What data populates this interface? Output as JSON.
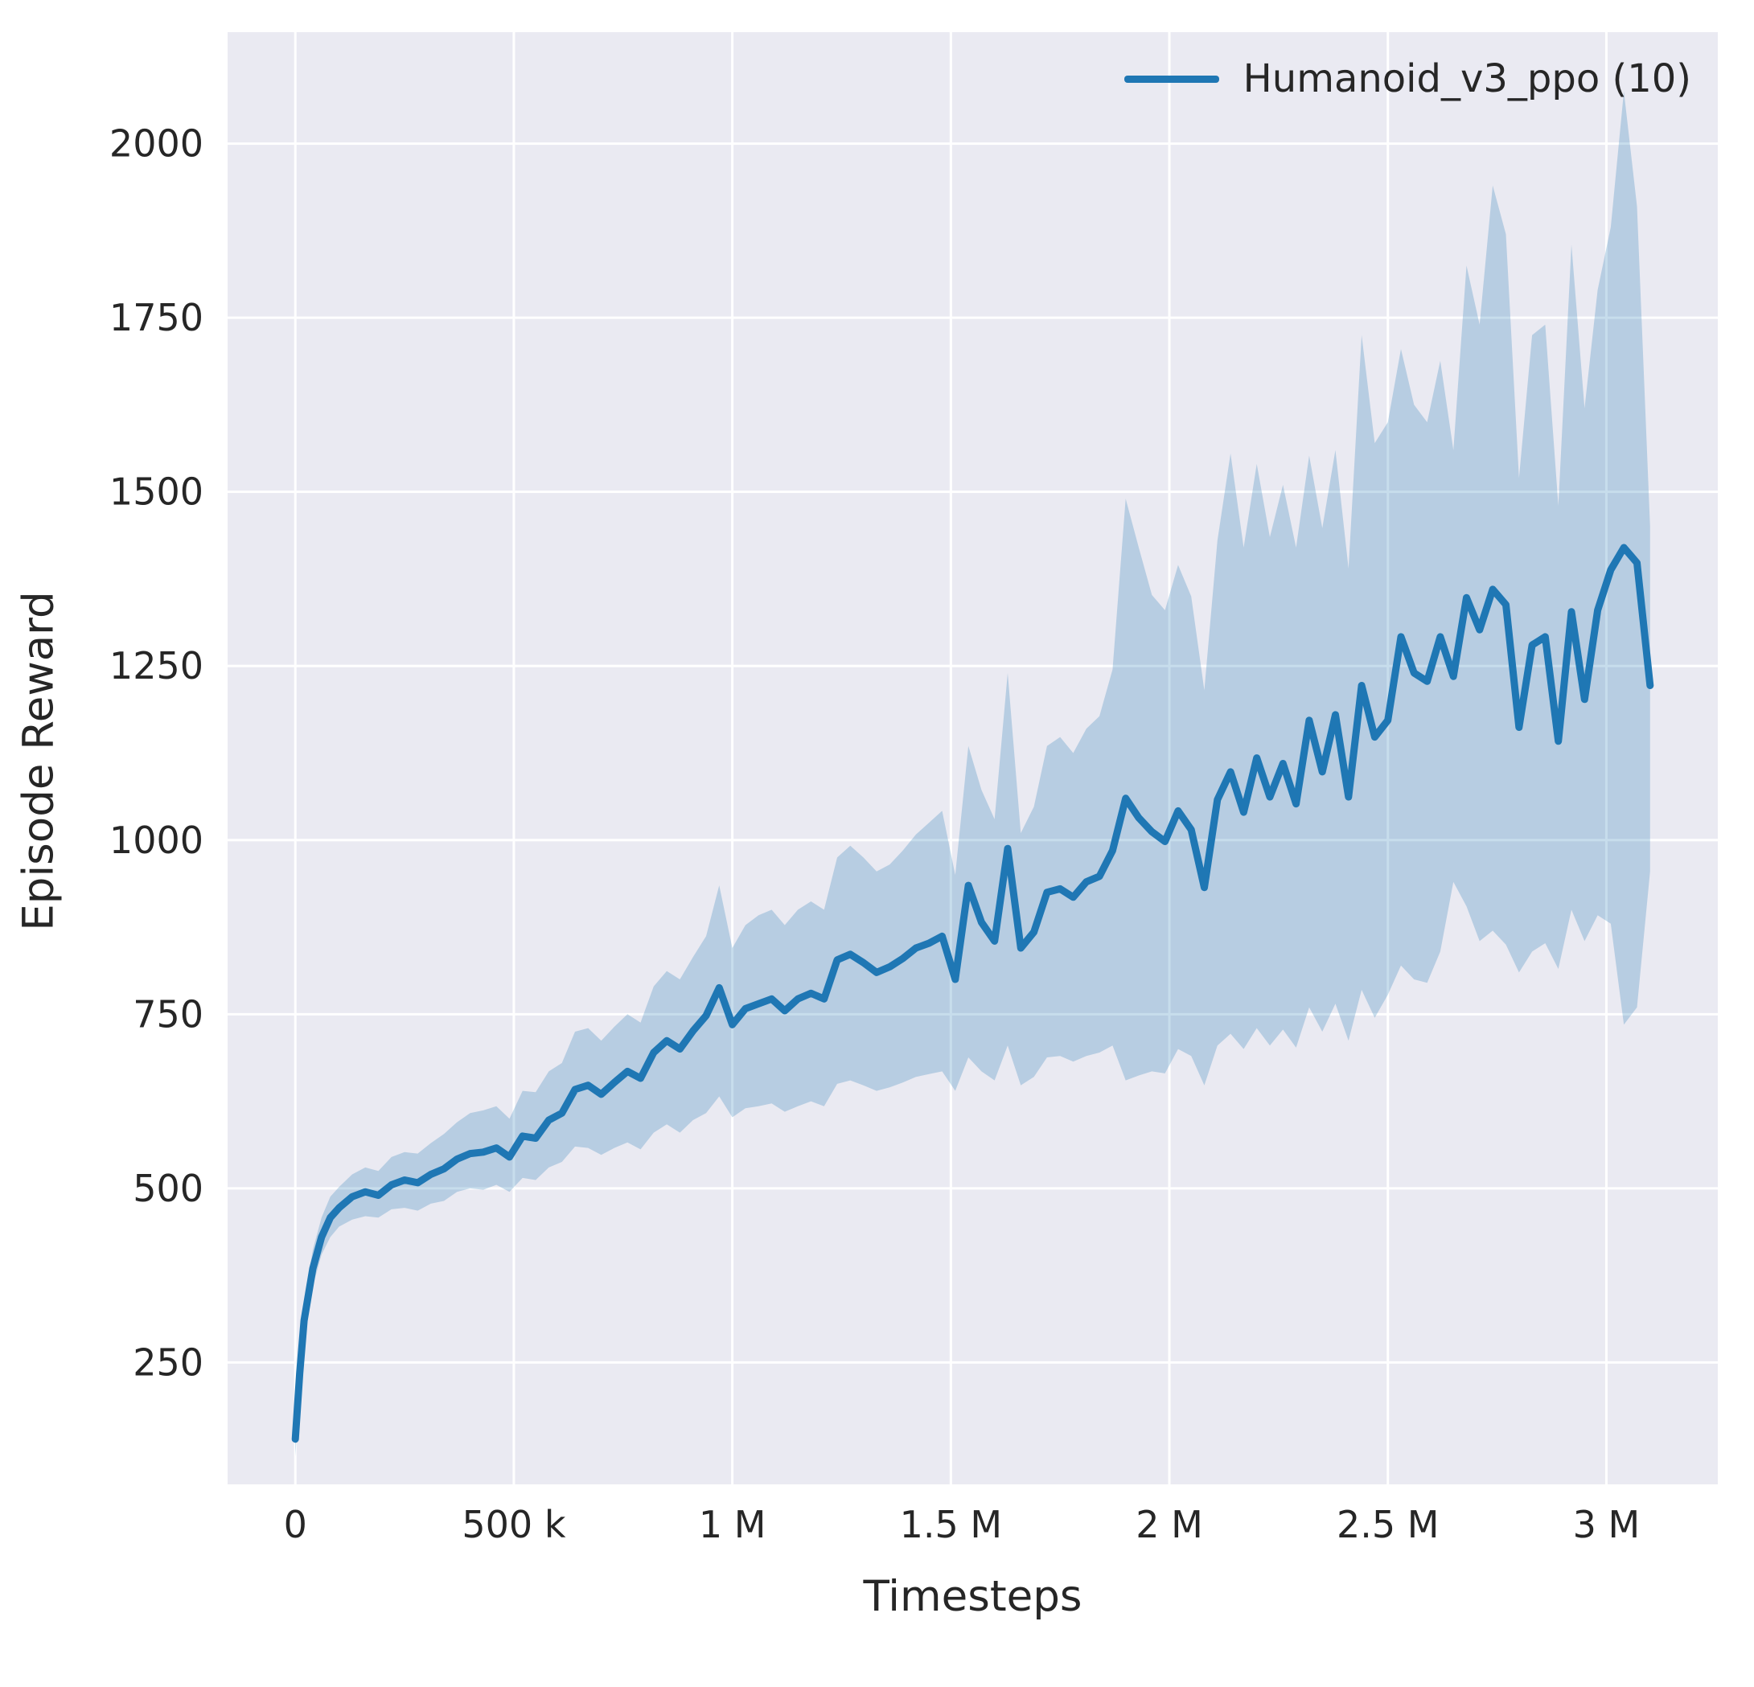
{
  "figure": {
    "background": "#ffffff"
  },
  "chart_data": {
    "type": "line",
    "title": "",
    "xlabel": "Timesteps",
    "ylabel": "Episode Reward",
    "xlim": [
      -155000,
      3255000
    ],
    "ylim": [
      75,
      2160
    ],
    "grid": true,
    "legend_position": "upper right",
    "colors": {
      "axes_bg": "#eaeaf2",
      "grid": "#ffffff",
      "text": "#262626",
      "line": "#1f77b4"
    },
    "xticks": {
      "values": [
        0,
        500000,
        1000000,
        1500000,
        2000000,
        2500000,
        3000000
      ],
      "labels": [
        "0",
        "500 k",
        "1 M",
        "1.5 M",
        "2 M",
        "2.5 M",
        "3 M"
      ]
    },
    "yticks": {
      "values": [
        250,
        500,
        750,
        1000,
        1250,
        1500,
        1750,
        2000
      ],
      "labels": [
        "250",
        "500",
        "750",
        "1000",
        "1250",
        "1500",
        "1750",
        "2000"
      ]
    },
    "point_format": [
      "timesteps",
      "band_low",
      "mean",
      "band_high"
    ],
    "series": [
      {
        "name": "Humanoid_v3_ppo (10)",
        "color": "#1f77b4",
        "band_opacity": 0.25,
        "points": [
          [
            0,
            115,
            140,
            165
          ],
          [
            10000,
            210,
            235,
            262
          ],
          [
            20000,
            285,
            310,
            338
          ],
          [
            40000,
            360,
            385,
            412
          ],
          [
            60000,
            405,
            430,
            458
          ],
          [
            80000,
            430,
            458,
            488
          ],
          [
            100000,
            445,
            472,
            502
          ],
          [
            130000,
            455,
            488,
            520
          ],
          [
            160000,
            460,
            495,
            530
          ],
          [
            190000,
            458,
            490,
            525
          ],
          [
            220000,
            470,
            505,
            545
          ],
          [
            250000,
            472,
            512,
            552
          ],
          [
            280000,
            468,
            508,
            550
          ],
          [
            310000,
            478,
            520,
            565
          ],
          [
            340000,
            482,
            528,
            578
          ],
          [
            370000,
            495,
            542,
            595
          ],
          [
            400000,
            500,
            550,
            608
          ],
          [
            430000,
            498,
            552,
            612
          ],
          [
            460000,
            505,
            558,
            618
          ],
          [
            490000,
            495,
            545,
            600
          ],
          [
            520000,
            515,
            575,
            640
          ],
          [
            550000,
            512,
            572,
            638
          ],
          [
            580000,
            530,
            598,
            668
          ],
          [
            610000,
            538,
            608,
            680
          ],
          [
            640000,
            560,
            642,
            725
          ],
          [
            670000,
            558,
            648,
            730
          ],
          [
            700000,
            548,
            635,
            712
          ],
          [
            730000,
            558,
            652,
            732
          ],
          [
            760000,
            566,
            668,
            750
          ],
          [
            790000,
            556,
            658,
            738
          ],
          [
            820000,
            580,
            695,
            790
          ],
          [
            850000,
            592,
            712,
            812
          ],
          [
            880000,
            580,
            700,
            800
          ],
          [
            910000,
            598,
            726,
            832
          ],
          [
            940000,
            608,
            748,
            862
          ],
          [
            970000,
            632,
            788,
            935
          ],
          [
            1000000,
            602,
            735,
            845
          ],
          [
            1030000,
            615,
            758,
            878
          ],
          [
            1060000,
            618,
            765,
            892
          ],
          [
            1090000,
            622,
            772,
            900
          ],
          [
            1120000,
            610,
            755,
            878
          ],
          [
            1150000,
            618,
            772,
            900
          ],
          [
            1180000,
            625,
            780,
            912
          ],
          [
            1210000,
            618,
            772,
            900
          ],
          [
            1240000,
            650,
            828,
            975
          ],
          [
            1270000,
            655,
            836,
            992
          ],
          [
            1300000,
            648,
            824,
            975
          ],
          [
            1330000,
            640,
            810,
            955
          ],
          [
            1360000,
            645,
            818,
            965
          ],
          [
            1390000,
            652,
            830,
            985
          ],
          [
            1420000,
            660,
            845,
            1008
          ],
          [
            1450000,
            664,
            852,
            1025
          ],
          [
            1480000,
            668,
            862,
            1042
          ],
          [
            1510000,
            640,
            800,
            950
          ],
          [
            1540000,
            688,
            935,
            1135
          ],
          [
            1570000,
            668,
            882,
            1072
          ],
          [
            1600000,
            655,
            855,
            1030
          ],
          [
            1630000,
            705,
            988,
            1240
          ],
          [
            1660000,
            648,
            845,
            1010
          ],
          [
            1690000,
            660,
            868,
            1048
          ],
          [
            1720000,
            688,
            925,
            1135
          ],
          [
            1750000,
            690,
            930,
            1148
          ],
          [
            1780000,
            682,
            918,
            1125
          ],
          [
            1810000,
            690,
            940,
            1160
          ],
          [
            1840000,
            695,
            948,
            1178
          ],
          [
            1870000,
            705,
            985,
            1245
          ],
          [
            1900000,
            655,
            1060,
            1490
          ],
          [
            1930000,
            662,
            1032,
            1420
          ],
          [
            1960000,
            668,
            1012,
            1352
          ],
          [
            1990000,
            665,
            998,
            1330
          ],
          [
            2020000,
            700,
            1042,
            1395
          ],
          [
            2050000,
            690,
            1015,
            1350
          ],
          [
            2080000,
            648,
            932,
            1215
          ],
          [
            2110000,
            705,
            1058,
            1430
          ],
          [
            2140000,
            722,
            1098,
            1555
          ],
          [
            2170000,
            700,
            1040,
            1420
          ],
          [
            2200000,
            730,
            1118,
            1540
          ],
          [
            2230000,
            705,
            1062,
            1435
          ],
          [
            2260000,
            728,
            1110,
            1510
          ],
          [
            2290000,
            702,
            1052,
            1420
          ],
          [
            2320000,
            760,
            1172,
            1552
          ],
          [
            2350000,
            725,
            1098,
            1448
          ],
          [
            2380000,
            765,
            1180,
            1560
          ],
          [
            2410000,
            712,
            1062,
            1390
          ],
          [
            2440000,
            785,
            1222,
            1725
          ],
          [
            2470000,
            745,
            1148,
            1570
          ],
          [
            2500000,
            778,
            1172,
            1600
          ],
          [
            2530000,
            820,
            1292,
            1705
          ],
          [
            2560000,
            800,
            1240,
            1625
          ],
          [
            2590000,
            795,
            1228,
            1600
          ],
          [
            2620000,
            840,
            1292,
            1688
          ],
          [
            2650000,
            940,
            1235,
            1560
          ],
          [
            2680000,
            905,
            1348,
            1825
          ],
          [
            2710000,
            855,
            1302,
            1740
          ],
          [
            2740000,
            870,
            1360,
            1940
          ],
          [
            2770000,
            850,
            1338,
            1870
          ],
          [
            2800000,
            810,
            1162,
            1520
          ],
          [
            2830000,
            840,
            1280,
            1725
          ],
          [
            2860000,
            852,
            1292,
            1740
          ],
          [
            2890000,
            815,
            1142,
            1480
          ],
          [
            2920000,
            900,
            1328,
            1855
          ],
          [
            2950000,
            855,
            1202,
            1620
          ],
          [
            2980000,
            892,
            1330,
            1790
          ],
          [
            3010000,
            880,
            1388,
            1880
          ],
          [
            3040000,
            735,
            1420,
            2075
          ],
          [
            3070000,
            760,
            1398,
            1910
          ],
          [
            3100000,
            955,
            1222,
            1450
          ]
        ]
      }
    ]
  }
}
